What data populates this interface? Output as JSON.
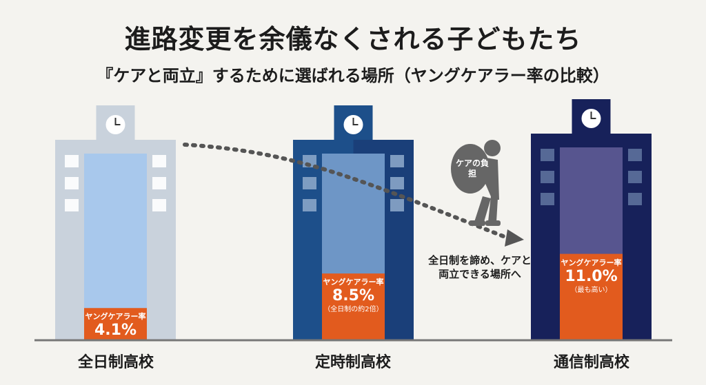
{
  "title": "進路変更を余儀なくされる子どもたち",
  "subtitle": "『ケアと両立』するために選ばれる場所（ヤングケアラー率の比較）",
  "burden_label": "ケアの負担",
  "side_note": "全日制を諦め、ケアと両立できる場所へ",
  "chart_data": {
    "type": "bar",
    "title": "進路変更を余儀なくされる子どもたち",
    "subtitle": "『ケアと両立』するために選ばれる場所（ヤングケアラー率の比較）",
    "categories": [
      "全日制高校",
      "定時制高校",
      "通信制高校"
    ],
    "values": [
      4.1,
      8.5,
      11.0
    ],
    "unit": "%",
    "ylim": [
      0,
      20
    ],
    "bar_caption": "ヤングケアラー率",
    "value_labels": [
      "4.1%",
      "8.5%",
      "11.0%"
    ],
    "notes": [
      "",
      "（全日制の約2倍）",
      "（最も高い）"
    ],
    "building_colors": [
      "#c9d2dc",
      "#1d4f8a",
      "#17215a"
    ],
    "window_colors": [
      "#a8c8ec",
      "#6e96c6",
      "#57558f"
    ],
    "bar_color": "#e25b1e"
  }
}
